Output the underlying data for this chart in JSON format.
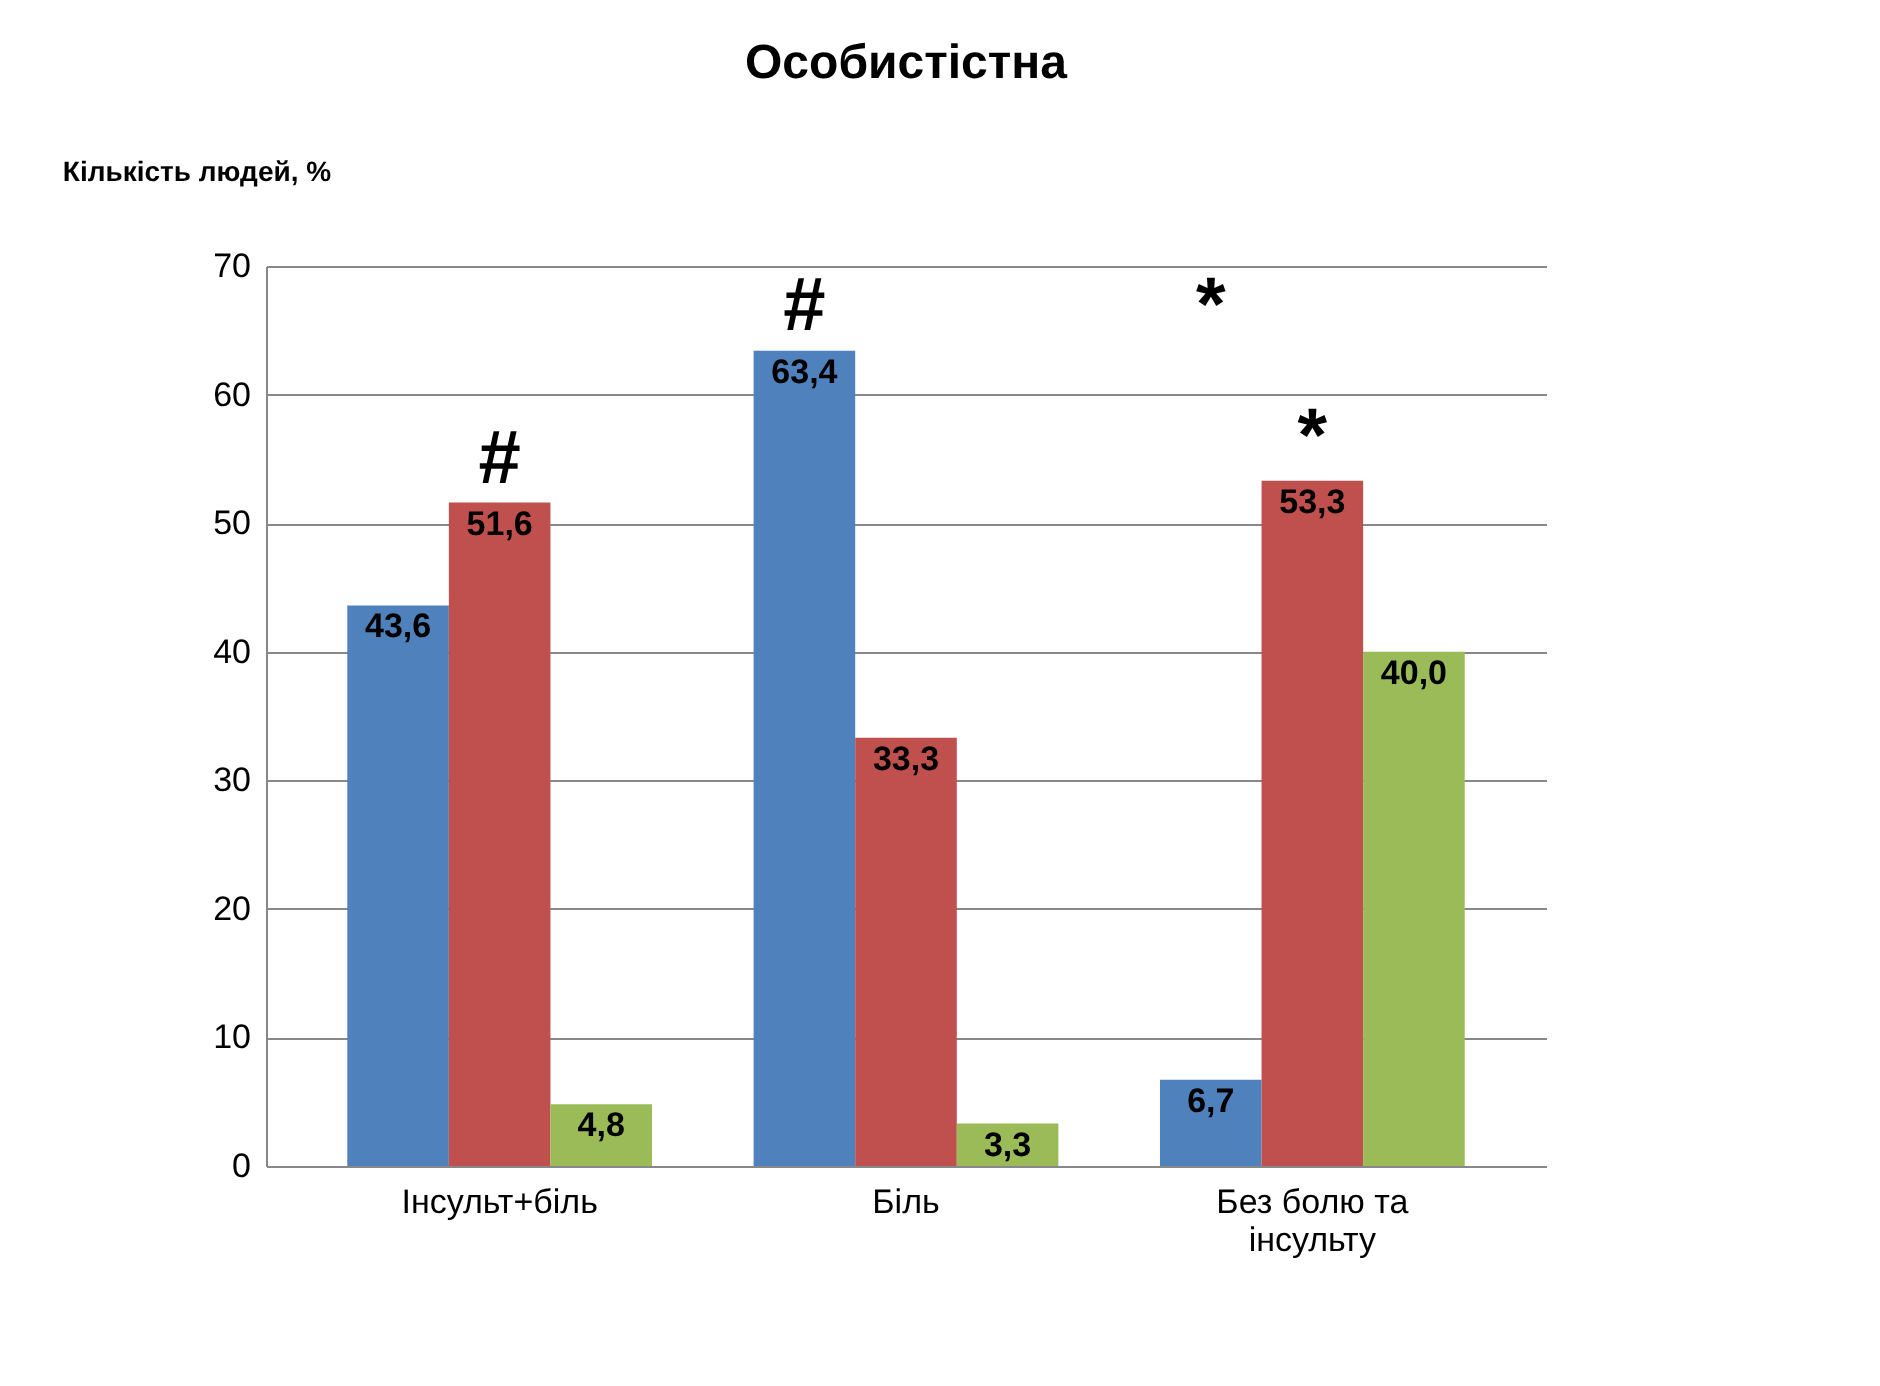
{
  "chart_data": {
    "type": "bar",
    "title": "Особистістна",
    "ylabel": "Кількість людей, %",
    "categories": [
      "Інсульт+біль",
      "Біль",
      "Без болю та\nінсульту"
    ],
    "series": [
      {
        "color": "#4f81bd",
        "values": [
          43.6,
          63.4,
          6.7
        ],
        "value_labels": [
          "43,6",
          "63,4",
          "6,7"
        ]
      },
      {
        "color": "#c0504d",
        "values": [
          51.6,
          33.3,
          53.3
        ],
        "value_labels": [
          "51,6",
          "33,3",
          "53,3"
        ]
      },
      {
        "color": "#9bbb59",
        "values": [
          4.8,
          3.3,
          40.0
        ],
        "value_labels": [
          "4,8",
          "3,3",
          "40,0"
        ]
      }
    ],
    "ylim": [
      0,
      70
    ],
    "yticks": [
      0,
      10,
      20,
      30,
      40,
      50,
      60,
      70
    ],
    "grid": "y",
    "annotations": [
      {
        "text": "#",
        "x": "Інсульт+біль",
        "y": 51.6
      },
      "#",
      "*",
      {
        "text": "*",
        "x": "Без болю та\nінсульту",
        "y": 53.3
      }
    ]
  }
}
